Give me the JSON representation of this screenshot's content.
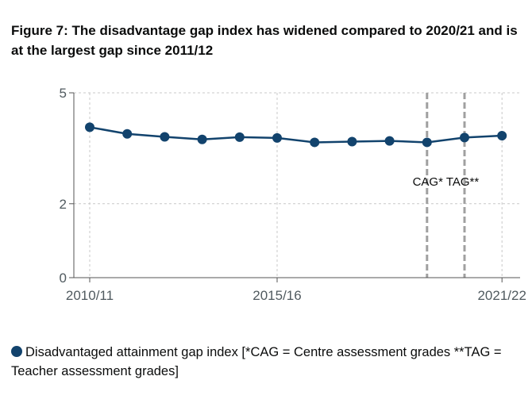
{
  "chart_data": {
    "type": "line",
    "title": "Figure 7: The disadvantage gap index has widened compared to 2020/21 and is at the largest gap since 2011/12",
    "x": [
      "2010/11",
      "2011/12",
      "2012/13",
      "2013/14",
      "2014/15",
      "2015/16",
      "2016/17",
      "2017/18",
      "2018/19",
      "2019/20",
      "2020/21",
      "2021/22"
    ],
    "x_tick_labels": [
      "2010/11",
      "2015/16",
      "2021/22"
    ],
    "series": [
      {
        "name": "Disadvantaged attainment gap index [*CAG = Centre assessment grades **TAG = Teacher assessment grades]",
        "values": [
          4.07,
          3.89,
          3.81,
          3.74,
          3.8,
          3.78,
          3.66,
          3.68,
          3.7,
          3.66,
          3.79,
          3.84
        ],
        "color": "#12436d"
      }
    ],
    "y_ticks": [
      0,
      2,
      5
    ],
    "ylim": [
      0,
      5
    ],
    "grid": true,
    "annotations": [
      {
        "text": "CAG*",
        "x": "2019/20"
      },
      {
        "text": "TAG**",
        "x": "2020/21"
      }
    ],
    "annotation_label": "CAG* TAG**",
    "legend_placement": "bottom"
  }
}
